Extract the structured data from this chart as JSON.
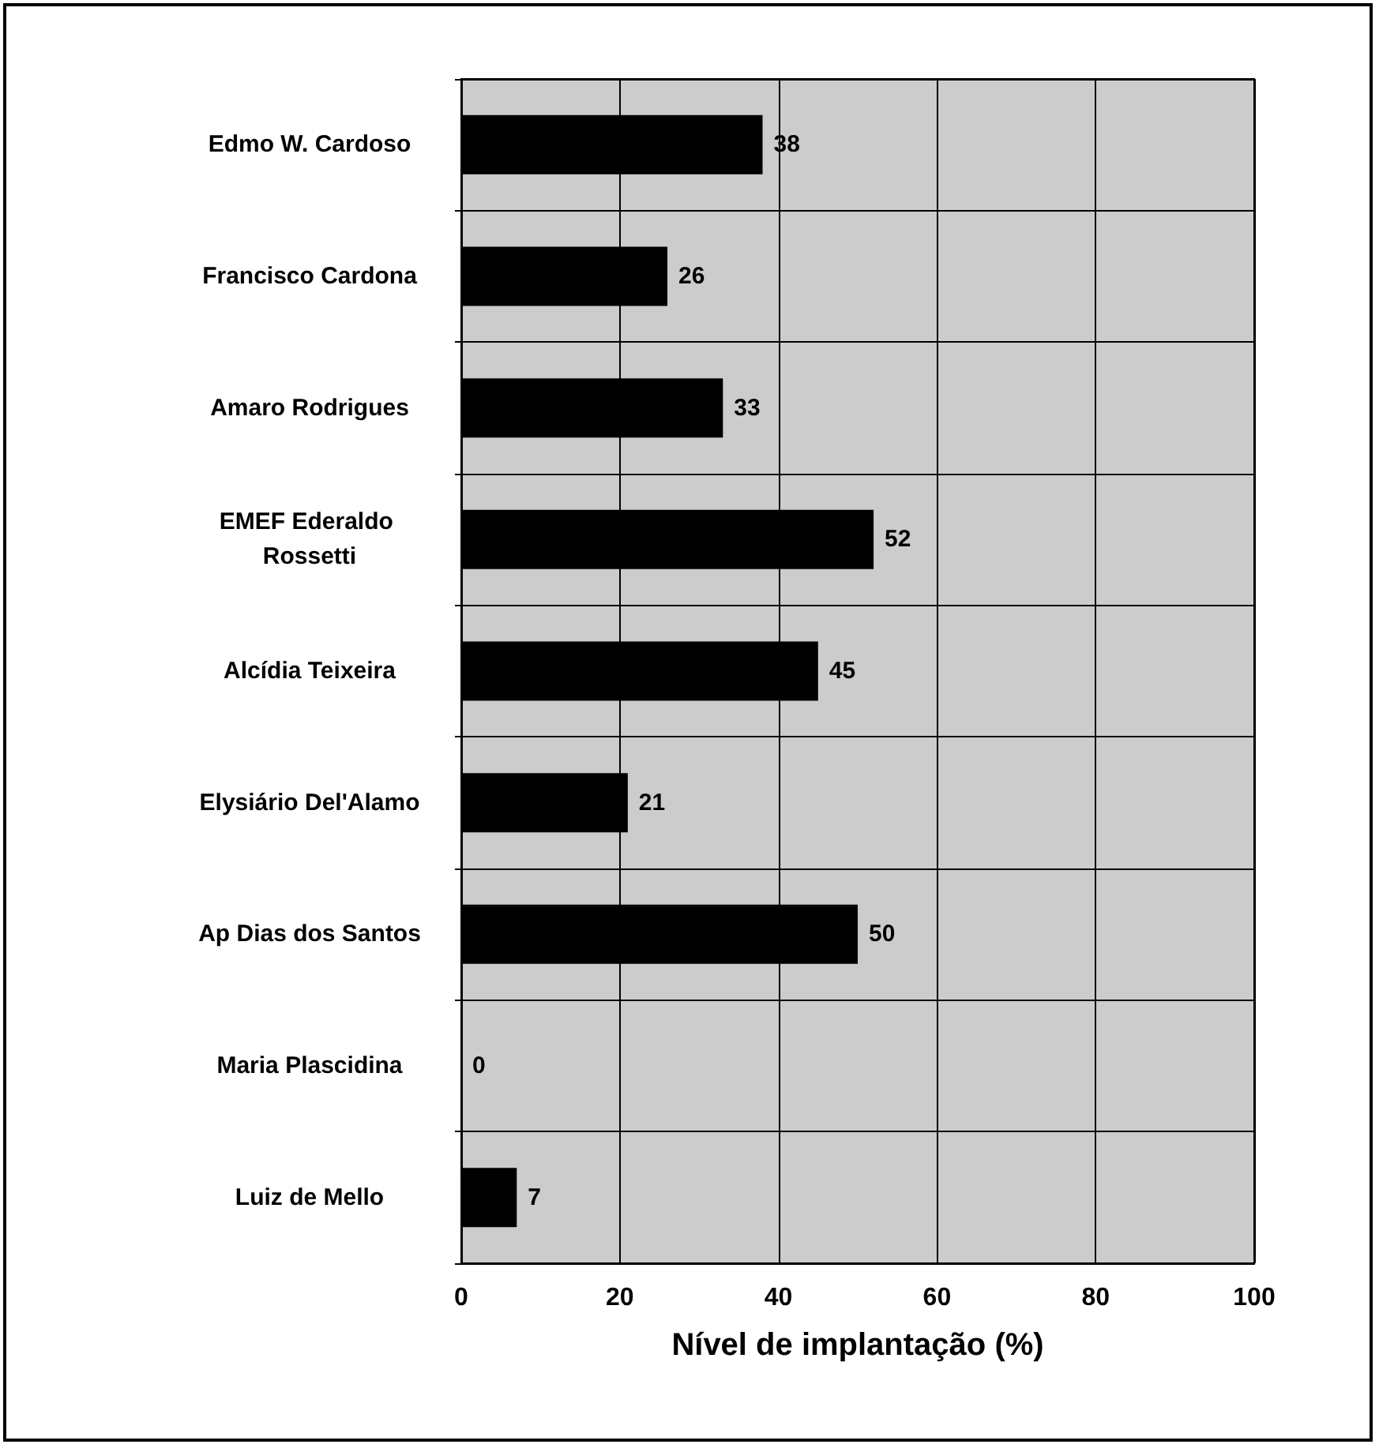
{
  "chart_data": {
    "type": "bar",
    "orientation": "horizontal",
    "xlabel": "Nível de implantação (%)",
    "categories": [
      "Edmo W. Cardoso",
      "Francisco Cardona",
      "Amaro Rodrigues",
      "EMEF Ederaldo Rossetti",
      "Alcídia Teixeira",
      "Elysiário Del'Alamo",
      "Ap Dias dos Santos",
      "Maria Plascidina",
      "Luiz de Mello"
    ],
    "values": [
      38,
      26,
      33,
      52,
      45,
      21,
      50,
      0,
      7
    ],
    "color": "#000000",
    "data_labels": true,
    "xlim": [
      0,
      100
    ],
    "xticks": [
      0,
      20,
      40,
      60,
      80,
      100
    ],
    "grid": true
  }
}
